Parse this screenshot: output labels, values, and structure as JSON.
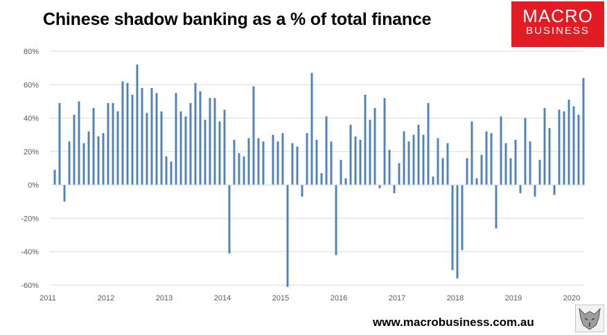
{
  "title": "Chinese shadow banking as a % of total finance",
  "logo": {
    "line1": "MACRO",
    "line2": "BUSINESS"
  },
  "url": "www.macrobusiness.com.au",
  "colors": {
    "bar": "#4f81bd",
    "grid": "#d9d9d9",
    "axis_text": "#595959",
    "logo_bg": "#e31b23"
  },
  "chart_data": {
    "type": "bar",
    "title": "Chinese shadow banking as a % of total finance",
    "xlabel": "",
    "ylabel": "",
    "ylim": [
      -60,
      80
    ],
    "yticks": [
      -60,
      -40,
      -20,
      0,
      20,
      40,
      60,
      80
    ],
    "ytick_labels": [
      "-60%",
      "-40%",
      "-20%",
      "0%",
      "20%",
      "40%",
      "60%",
      "80%"
    ],
    "xlim": [
      "2011-01",
      "2020-03"
    ],
    "xticks": [
      "2011",
      "2012",
      "2013",
      "2014",
      "2015",
      "2016",
      "2017",
      "2018",
      "2019",
      "2020"
    ],
    "grid": true,
    "legend": "none",
    "start": "2011-02",
    "frequency": "monthly",
    "values": [
      9,
      49,
      -10,
      26,
      42,
      50,
      25,
      32,
      46,
      29,
      31,
      49,
      49,
      44,
      62,
      61,
      54,
      72,
      58,
      43,
      58,
      55,
      44,
      17,
      14,
      55,
      44,
      41,
      49,
      61,
      56,
      39,
      52,
      52,
      38,
      45,
      -41,
      27,
      19,
      17,
      28,
      59,
      28,
      26,
      0,
      30,
      26,
      31,
      -61,
      25,
      23,
      -7,
      31,
      67,
      27,
      7,
      41,
      26,
      -42,
      15,
      4,
      36,
      29,
      27,
      54,
      39,
      46,
      -2,
      52,
      21,
      -5,
      13,
      32,
      26,
      30,
      36,
      30,
      49,
      5,
      28,
      16,
      25,
      -51,
      -56,
      -39,
      16,
      38,
      4,
      18,
      32,
      31,
      -26,
      41,
      25,
      16,
      27,
      -5,
      40,
      26,
      -7,
      15,
      46,
      34,
      -6,
      45,
      44,
      51,
      47,
      42,
      64
    ]
  }
}
